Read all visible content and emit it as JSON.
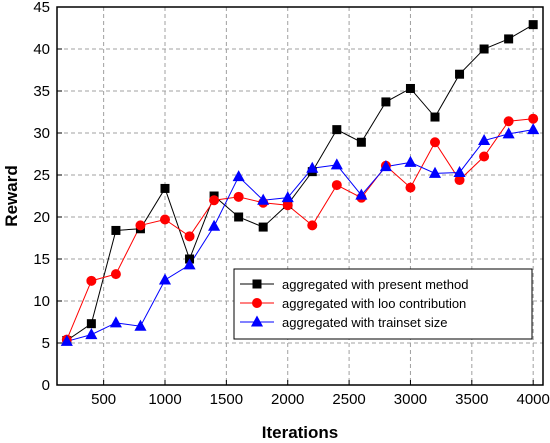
{
  "chart_data": {
    "type": "line",
    "title": "",
    "xlabel": "Iterations",
    "ylabel": "Reward",
    "xlim": [
      120,
      4080
    ],
    "ylim": [
      0,
      45
    ],
    "xticks": [
      500,
      1000,
      1500,
      2000,
      2500,
      3000,
      3500,
      4000
    ],
    "yticks": [
      0,
      5,
      10,
      15,
      20,
      25,
      30,
      35,
      40,
      45
    ],
    "grid": true,
    "legend_position": "bottom-right",
    "x": [
      200,
      400,
      600,
      800,
      1000,
      1200,
      1400,
      1600,
      1800,
      2000,
      2200,
      2400,
      2600,
      2800,
      3000,
      3200,
      3400,
      3600,
      3800,
      4000
    ],
    "series": [
      {
        "name": "aggregated with present method",
        "color": "#000000",
        "marker": "square",
        "values": [
          5.3,
          7.3,
          18.4,
          18.6,
          23.4,
          15.0,
          22.5,
          20.0,
          18.8,
          21.5,
          25.4,
          30.4,
          28.9,
          33.7,
          35.3,
          31.9,
          37.0,
          40.0,
          41.2,
          42.9
        ]
      },
      {
        "name": "aggregated with loo contribution",
        "color": "#ff0000",
        "marker": "circle",
        "values": [
          5.4,
          12.4,
          13.2,
          19.0,
          19.7,
          17.7,
          22.0,
          22.4,
          21.7,
          21.4,
          19.0,
          23.8,
          22.3,
          26.1,
          23.5,
          28.9,
          24.4,
          27.2,
          31.4,
          31.7
        ]
      },
      {
        "name": "aggregated with trainset size",
        "color": "#0000ff",
        "marker": "triangle",
        "values": [
          5.2,
          6.0,
          7.4,
          7.0,
          12.5,
          14.3,
          18.9,
          24.8,
          22.0,
          22.3,
          25.8,
          26.2,
          22.6,
          26.0,
          26.5,
          25.2,
          25.3,
          29.1,
          29.9,
          30.4
        ]
      }
    ]
  }
}
